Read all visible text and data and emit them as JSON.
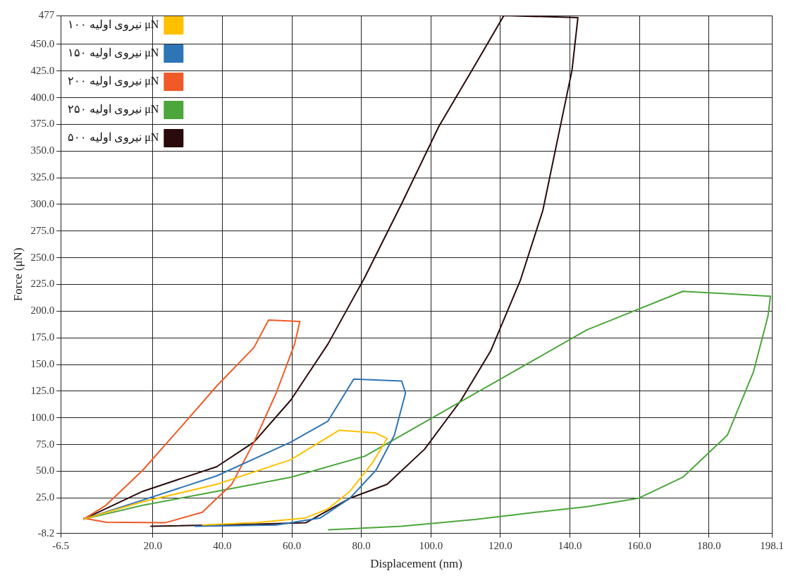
{
  "chart_data": {
    "type": "line",
    "xlabel": "Displacement (nm)",
    "ylabel": "Force (μN)",
    "xlim": [
      -6.5,
      198.1
    ],
    "ylim": [
      -8.2,
      477.0
    ],
    "xticks": [
      -6.5,
      {
        "value": 20,
        "label": "20.0"
      },
      {
        "value": 40,
        "label": "40.0"
      },
      {
        "value": 60,
        "label": "60.0"
      },
      {
        "value": 80,
        "label": "80.0"
      },
      {
        "value": 100,
        "label": "100.0"
      },
      {
        "value": 120,
        "label": "120.0"
      },
      {
        "value": 140,
        "label": "140.0"
      },
      {
        "value": 160,
        "label": "160.0"
      },
      {
        "value": 180,
        "label": "180.0"
      },
      198.1
    ],
    "yticks": [
      -8.2,
      {
        "value": 25,
        "label": "25.0"
      },
      {
        "value": 50,
        "label": "50.0"
      },
      {
        "value": 75,
        "label": "75.0"
      },
      {
        "value": 100,
        "label": "100.0"
      },
      {
        "value": 125,
        "label": "125.0"
      },
      {
        "value": 150,
        "label": "150.0"
      },
      {
        "value": 175,
        "label": "175.0"
      },
      {
        "value": 200,
        "label": "200.0"
      },
      {
        "value": 225,
        "label": "225.0"
      },
      {
        "value": 250,
        "label": "250.0"
      },
      {
        "value": 275,
        "label": "275.0"
      },
      {
        "value": 300,
        "label": "300.0"
      },
      {
        "value": 325,
        "label": "325.0"
      },
      {
        "value": 350,
        "label": "350.0"
      },
      {
        "value": 375,
        "label": "375.0"
      },
      {
        "value": 400,
        "label": "400.0"
      },
      {
        "value": 425,
        "label": "425.0"
      },
      {
        "value": 450,
        "label": "450.0"
      },
      477.0
    ],
    "grid": true,
    "legend": "top left",
    "marker": "none",
    "line_style": "solid",
    "series": [
      {
        "name": "نیروی اولیه ۱۰۰ μN",
        "color": "#ffc000",
        "x": [
          0,
          17.1,
          38.4,
          59.7,
          73.6,
          84.2,
          87.4,
          83.1,
          76.7,
          70.4,
          64,
          50,
          34.2
        ],
        "values": [
          5,
          21.4,
          37.8,
          60.8,
          88.4,
          85.8,
          80.6,
          57.5,
          31.2,
          14.8,
          6.3,
          2,
          -0.3
        ]
      },
      {
        "name": "نیروی اولیه ۱۵۰ μN",
        "color": "#2e75b6",
        "x": [
          0,
          17.1,
          38.4,
          59.7,
          70.4,
          77.8,
          91.6,
          92.7,
          89.5,
          84.2,
          76.7,
          68.2,
          55.5,
          32
        ],
        "values": [
          5,
          23,
          45.7,
          77.3,
          97,
          136.4,
          134.5,
          123.3,
          83.8,
          51,
          24.7,
          6.3,
          -0.3,
          -1.6
        ]
      },
      {
        "name": "نیروی اولیه ۲۰۰ μN",
        "color": "#f05a28",
        "x": [
          0,
          6.5,
          17.1,
          27.8,
          38.4,
          49.1,
          53.3,
          62.3,
          60.8,
          55.5,
          49.1,
          42.7,
          34.2,
          23.5,
          6.5,
          0
        ],
        "values": [
          5,
          18.1,
          51,
          90.4,
          129.9,
          166,
          191.7,
          190.4,
          169.3,
          123.3,
          77.3,
          37.8,
          11.5,
          1.7,
          2.3,
          6
        ]
      },
      {
        "name": "نیروی اولیه ۲۵۰ μN",
        "color": "#4ca63c",
        "x": [
          0,
          17.1,
          38.4,
          59.7,
          81,
          102.3,
          123.6,
          144.9,
          172.5,
          197.7,
          197,
          192.8,
          185.3,
          172.5,
          159.7,
          144.9,
          130,
          113,
          91.6,
          70.4
        ],
        "values": [
          5,
          18.1,
          31.2,
          44.4,
          64.1,
          103.6,
          143,
          182.5,
          218.6,
          214,
          195.6,
          143,
          83.8,
          44.4,
          24.7,
          16.8,
          11.5,
          4.9,
          -1.6,
          -4.9
        ]
      },
      {
        "name": "نیروی اولیه ۵۰۰ μN",
        "color": "#2a0a0a",
        "x": [
          0,
          17.1,
          38.4,
          49.1,
          59.7,
          70.4,
          81,
          91.6,
          102.3,
          113,
          121,
          142.3,
          140.6,
          136.4,
          132.2,
          125.7,
          117.2,
          108.7,
          98.2,
          87.4,
          76.7,
          64,
          50,
          19.3
        ],
        "values": [
          5,
          31.2,
          54.3,
          77.3,
          116.7,
          169.3,
          231.8,
          300.8,
          373.1,
          432.3,
          477,
          475,
          425.7,
          360,
          294.2,
          228.5,
          162.7,
          116.7,
          70.7,
          37.8,
          24.7,
          1.7,
          0.5,
          -1.6
        ]
      }
    ]
  }
}
